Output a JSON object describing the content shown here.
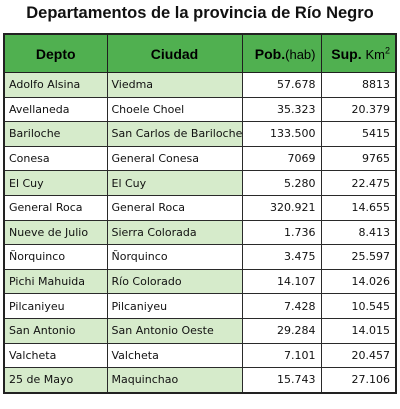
{
  "title": "Departamentos de la provincia de Río Negro",
  "table": {
    "headers": {
      "depto": "Depto",
      "ciudad": "Ciudad",
      "pob_label": "Pob.",
      "pob_unit": "(hab)",
      "sup_label": "Sup.",
      "sup_unit": "Km",
      "sup_exp": "2"
    },
    "rows": [
      {
        "depto": "Adolfo Alsina",
        "ciudad": "Viedma",
        "pob": "57.678",
        "sup": "8813"
      },
      {
        "depto": "Avellaneda",
        "ciudad": "Choele Choel",
        "pob": "35.323",
        "sup": "20.379"
      },
      {
        "depto": "Bariloche",
        "ciudad": "San Carlos de Bariloche",
        "pob": "133.500",
        "sup": "5415"
      },
      {
        "depto": "Conesa",
        "ciudad": "General Conesa",
        "pob": "7069",
        "sup": "9765"
      },
      {
        "depto": "El Cuy",
        "ciudad": "El Cuy",
        "pob": "5.280",
        "sup": "22.475"
      },
      {
        "depto": "General Roca",
        "ciudad": "General Roca",
        "pob": "320.921",
        "sup": "14.655"
      },
      {
        "depto": "Nueve de Julio",
        "ciudad": "Sierra Colorada",
        "pob": "1.736",
        "sup": "8.413"
      },
      {
        "depto": "Ñorquinco",
        "ciudad": "Ñorquinco",
        "pob": "3.475",
        "sup": "25.597"
      },
      {
        "depto": "Pichi Mahuida",
        "ciudad": "Río Colorado",
        "pob": "14.107",
        "sup": "14.026"
      },
      {
        "depto": "Pilcaniyeu",
        "ciudad": "Pilcaniyeu",
        "pob": "7.428",
        "sup": "10.545"
      },
      {
        "depto": "San Antonio",
        "ciudad": "San Antonio Oeste",
        "pob": "29.284",
        "sup": "14.015"
      },
      {
        "depto": "Valcheta",
        "ciudad": "Valcheta",
        "pob": "7.101",
        "sup": "20.457"
      },
      {
        "depto": "25 de Mayo",
        "ciudad": "Maquinchao",
        "pob": "15.743",
        "sup": "27.106"
      }
    ]
  }
}
